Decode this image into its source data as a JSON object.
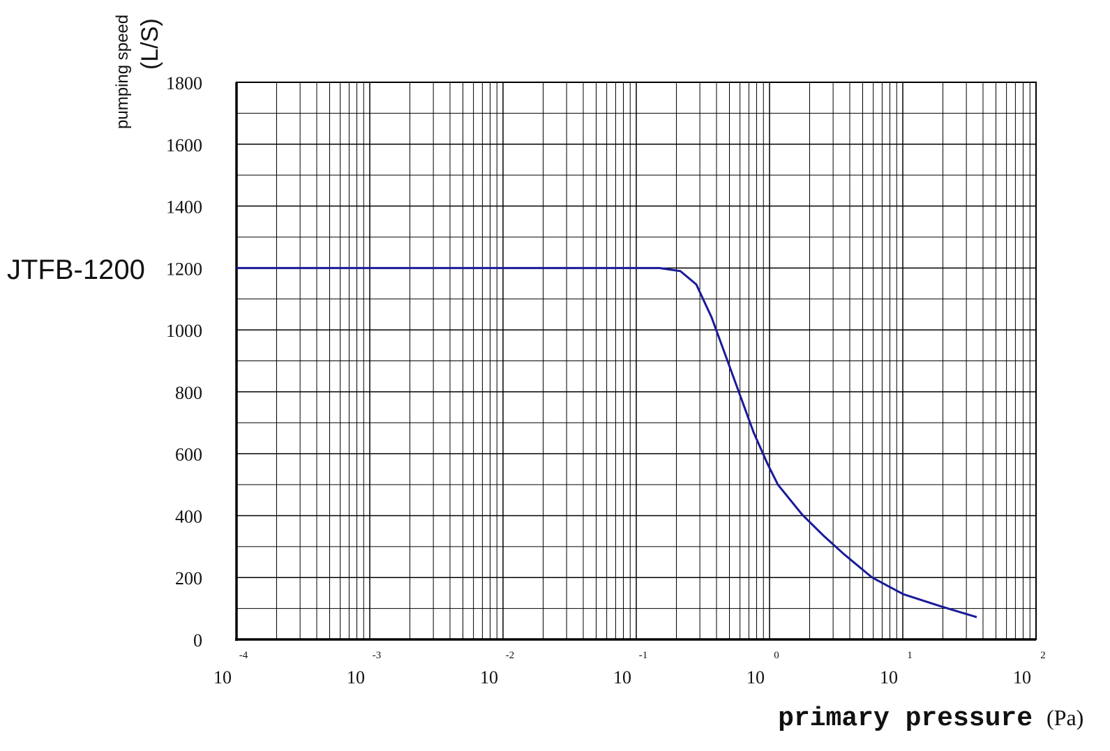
{
  "chart_data": {
    "type": "line",
    "title": "JTFB-1200",
    "y_label": "pumping speed",
    "y_unit": "(L/S)",
    "x_label": "primary pressure",
    "x_unit": "(Pa)",
    "x_scale": "log",
    "grid": true,
    "minor_grid": true,
    "xlim": [
      0.0001,
      100
    ],
    "xticks": [
      {
        "value": 0.0001,
        "label": "10",
        "power": "-4"
      },
      {
        "value": 0.001,
        "label": "10",
        "power": "-3"
      },
      {
        "value": 0.01,
        "label": "10",
        "power": "-2"
      },
      {
        "value": 0.1,
        "label": "10",
        "power": "-1"
      },
      {
        "value": 1,
        "label": "10",
        "power": "0"
      },
      {
        "value": 10,
        "label": "10",
        "power": "1"
      },
      {
        "value": 100,
        "label": "10",
        "power": "2"
      }
    ],
    "ylim": [
      0,
      1800
    ],
    "yticks": [
      0,
      200,
      400,
      600,
      800,
      1000,
      1200,
      1400,
      1600,
      1800
    ],
    "y_minor_ticks": [
      100,
      300,
      500,
      700,
      900,
      1100,
      1300,
      1500,
      1700
    ],
    "x": [
      0.0001,
      0.149,
      0.214,
      0.282,
      0.367,
      0.468,
      0.596,
      0.759,
      0.964,
      1.156,
      1.76,
      2.53,
      3.63,
      5.89,
      10.1,
      19.6,
      35.9
    ],
    "series": [
      {
        "name": "JTFB-1200",
        "color": "#1a1a9a",
        "values": [
          1200,
          1200,
          1190,
          1147,
          1041,
          917,
          793,
          669,
          568,
          500,
          403,
          336,
          275,
          200,
          146,
          106,
          72
        ]
      }
    ]
  }
}
